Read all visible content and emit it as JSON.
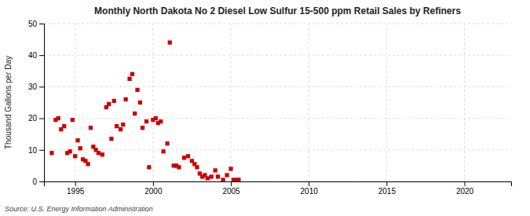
{
  "chart_data": {
    "type": "scatter",
    "title": "Monthly North Dakota No 2 Diesel Low Sulfur 15-500 ppm Retail Sales by Refiners",
    "ylabel": "Thousand Gallons per Day",
    "source": "Source: U.S. Energy Information Administration",
    "color": "#cc0000",
    "marker": "square",
    "grid": true,
    "xlim": [
      1993.0,
      2023.0
    ],
    "ylim": [
      0,
      50
    ],
    "xticks": [
      1995,
      2000,
      2005,
      2010,
      2015,
      2020
    ],
    "yticks": [
      0,
      10,
      20,
      30,
      40,
      50
    ],
    "x": [
      1993.5,
      1993.75,
      1993.92,
      1994.1,
      1994.3,
      1994.5,
      1994.67,
      1994.83,
      1995.0,
      1995.17,
      1995.33,
      1995.5,
      1995.67,
      1995.83,
      1996.0,
      1996.17,
      1996.33,
      1996.5,
      1996.75,
      1997.0,
      1997.17,
      1997.33,
      1997.5,
      1997.67,
      1997.92,
      1998.08,
      1998.25,
      1998.5,
      1998.67,
      1998.83,
      1999.0,
      1999.17,
      1999.33,
      1999.58,
      1999.75,
      2000.0,
      2000.17,
      2000.33,
      2000.5,
      2000.67,
      2000.92,
      2001.08,
      2001.33,
      2001.5,
      2001.67,
      2002.0,
      2002.25,
      2002.5,
      2002.67,
      2002.83,
      2003.0,
      2003.17,
      2003.33,
      2003.5,
      2003.75,
      2004.0,
      2004.17,
      2004.5,
      2004.75,
      2005.0,
      2005.17,
      2005.42,
      2005.5
    ],
    "values": [
      9.0,
      19.5,
      20.0,
      16.5,
      17.5,
      9.0,
      9.5,
      19.5,
      8.0,
      13.0,
      10.5,
      7.0,
      6.5,
      5.5,
      17.0,
      11.0,
      10.0,
      9.0,
      8.5,
      23.5,
      24.5,
      13.5,
      25.5,
      17.5,
      16.5,
      18.0,
      26.0,
      32.5,
      34.0,
      21.5,
      29.0,
      25.0,
      17.0,
      19.0,
      4.5,
      19.5,
      20.0,
      18.5,
      19.0,
      9.5,
      12.0,
      44.0,
      5.0,
      5.0,
      4.5,
      7.5,
      8.0,
      6.5,
      5.5,
      4.5,
      2.5,
      1.5,
      2.0,
      1.0,
      1.5,
      3.5,
      1.5,
      0.5,
      2.0,
      4.0,
      0.5,
      0.5,
      0.5
    ]
  }
}
